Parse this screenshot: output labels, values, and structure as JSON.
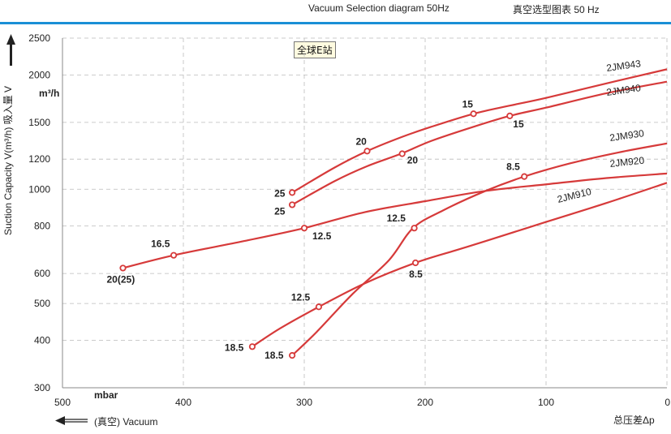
{
  "header": {
    "title_en": "Vacuum Selection diagram 50Hz",
    "title_cn": "真空选型图表 50 Hz"
  },
  "stamp": "全球E站",
  "colors": {
    "curve": "#d63a3a",
    "rule": "#1a8fd6",
    "grid": "#bbbbbb"
  },
  "chart_data": {
    "type": "line",
    "title": "Vacuum Selection diagram 50Hz",
    "xlabel": "(真空)  Vacuum",
    "x_unit": "mbar",
    "x_right_label": "总压差Δp",
    "ylabel": "Suction Capacity V(m³/h)  吸入量 V",
    "y_unit": "m³/h",
    "xlim": [
      500,
      0
    ],
    "x_reversed": true,
    "x_ticks": [
      500,
      400,
      300,
      200,
      100,
      0
    ],
    "y_scale": "log",
    "ylim": [
      300,
      2500
    ],
    "y_ticks": [
      300,
      400,
      500,
      600,
      800,
      1000,
      1200,
      1500,
      2000,
      2500
    ],
    "grid": true,
    "series": [
      {
        "name": "2JM943",
        "x": [
          310,
          275,
          248,
          220,
          195,
          160,
          130,
          100,
          50,
          0
        ],
        "y": [
          980,
          1140,
          1260,
          1370,
          1460,
          1580,
          1660,
          1740,
          1900,
          2070
        ],
        "markers": [
          {
            "x": 310,
            "y": 980,
            "label": "25"
          },
          {
            "x": 248,
            "y": 1260,
            "label": "20"
          },
          {
            "x": 160,
            "y": 1580,
            "label": "15"
          }
        ]
      },
      {
        "name": "2JM940",
        "x": [
          310,
          275,
          248,
          220,
          195,
          160,
          130,
          100,
          50,
          0
        ],
        "y": [
          910,
          1050,
          1150,
          1240,
          1340,
          1460,
          1560,
          1640,
          1790,
          1920
        ],
        "markers": [
          {
            "x": 310,
            "y": 910,
            "label": "25"
          },
          {
            "x": 219,
            "y": 1240,
            "label": "20"
          },
          {
            "x": 130,
            "y": 1560,
            "label": "15"
          }
        ]
      },
      {
        "name": "2JM930",
        "x": [
          310,
          290,
          260,
          230,
          210,
          185,
          150,
          118,
          80,
          40,
          0
        ],
        "y": [
          365,
          420,
          530,
          650,
          790,
          880,
          990,
          1080,
          1170,
          1250,
          1320
        ],
        "markers": [
          {
            "x": 310,
            "y": 365,
            "label": "18.5"
          },
          {
            "x": 209,
            "y": 790,
            "label": "12.5"
          },
          {
            "x": 118,
            "y": 1080,
            "label": "8.5"
          }
        ]
      },
      {
        "name": "2JM920",
        "x": [
          450,
          408,
          350,
          300,
          250,
          200,
          150,
          100,
          50,
          0
        ],
        "y": [
          620,
          670,
          730,
          790,
          870,
          930,
          990,
          1030,
          1070,
          1100
        ],
        "markers": [
          {
            "x": 450,
            "y": 620,
            "label": "20(25)"
          },
          {
            "x": 408,
            "y": 670,
            "label": "16.5"
          },
          {
            "x": 300,
            "y": 790,
            "label": "12.5"
          }
        ]
      },
      {
        "name": "2JM910",
        "x": [
          343,
          320,
          288,
          250,
          208,
          175,
          150,
          100,
          50,
          0
        ],
        "y": [
          385,
          430,
          490,
          565,
          640,
          690,
          730,
          820,
          920,
          1040
        ],
        "markers": [
          {
            "x": 343,
            "y": 385,
            "label": "18.5"
          },
          {
            "x": 288,
            "y": 490,
            "label": "12.5"
          },
          {
            "x": 208,
            "y": 640,
            "label": "8.5"
          }
        ]
      }
    ]
  }
}
